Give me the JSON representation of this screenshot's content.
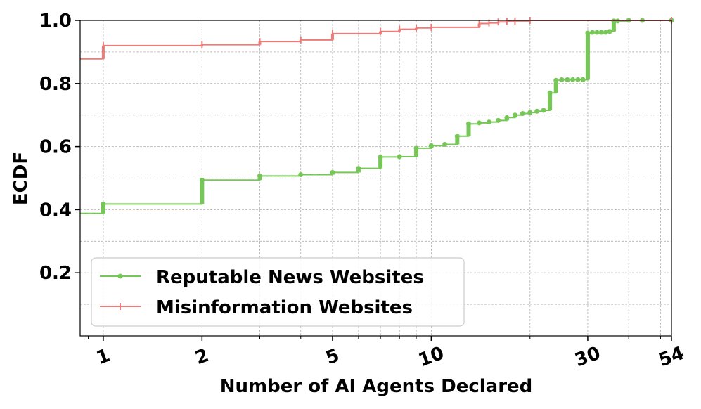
{
  "chart_data": {
    "type": "line",
    "xlabel": "Number of AI Agents Declared",
    "ylabel": "ECDF",
    "x_scale": "log",
    "xlim": [
      0.85,
      54
    ],
    "ylim": [
      0,
      1.0
    ],
    "x_ticks": [
      1,
      2,
      5,
      10,
      30,
      54
    ],
    "x_tick_labels": [
      "1",
      "2",
      "5",
      "10",
      "30",
      "54"
    ],
    "y_ticks": [
      0.2,
      0.4,
      0.6,
      0.8,
      1.0
    ],
    "y_tick_labels": [
      "0.2",
      "0.4",
      "0.6",
      "0.8",
      "1.0"
    ],
    "grid": true,
    "legend_position": "lower-left",
    "colors": {
      "reputable": "#77c658",
      "misinformation": "#ee7b78",
      "grid": "#b0b0b0"
    },
    "series": [
      {
        "name": "Reputable News Websites",
        "color": "#77c658",
        "marker": "dot",
        "x": [
          0.85,
          1,
          2,
          3,
          4,
          5,
          6,
          7,
          8,
          9,
          10,
          11,
          12,
          13,
          14,
          15,
          16,
          17,
          18,
          19,
          20,
          21,
          22,
          23,
          24,
          25,
          26,
          27,
          28,
          29,
          30,
          31,
          32,
          33,
          34,
          35,
          36,
          37,
          40,
          44,
          54
        ],
        "y": [
          0.388,
          0.418,
          0.494,
          0.507,
          0.511,
          0.518,
          0.531,
          0.567,
          0.568,
          0.595,
          0.603,
          0.607,
          0.633,
          0.672,
          0.675,
          0.678,
          0.683,
          0.692,
          0.7,
          0.705,
          0.708,
          0.712,
          0.715,
          0.77,
          0.81,
          0.812,
          0.812,
          0.812,
          0.812,
          0.812,
          0.96,
          0.962,
          0.962,
          0.962,
          0.962,
          0.965,
          0.998,
          0.998,
          1.0,
          1.0,
          1.0
        ]
      },
      {
        "name": "Misinformation Websites",
        "color": "#ee7b78",
        "marker": "tick",
        "x": [
          0.85,
          1,
          2,
          3,
          4,
          5,
          7,
          8,
          9,
          10,
          14,
          15,
          16,
          17,
          18,
          20,
          54
        ],
        "y": [
          0.878,
          0.92,
          0.923,
          0.933,
          0.938,
          0.958,
          0.965,
          0.972,
          0.976,
          0.978,
          0.99,
          0.992,
          0.995,
          0.997,
          0.998,
          1.0,
          1.0
        ]
      }
    ]
  }
}
